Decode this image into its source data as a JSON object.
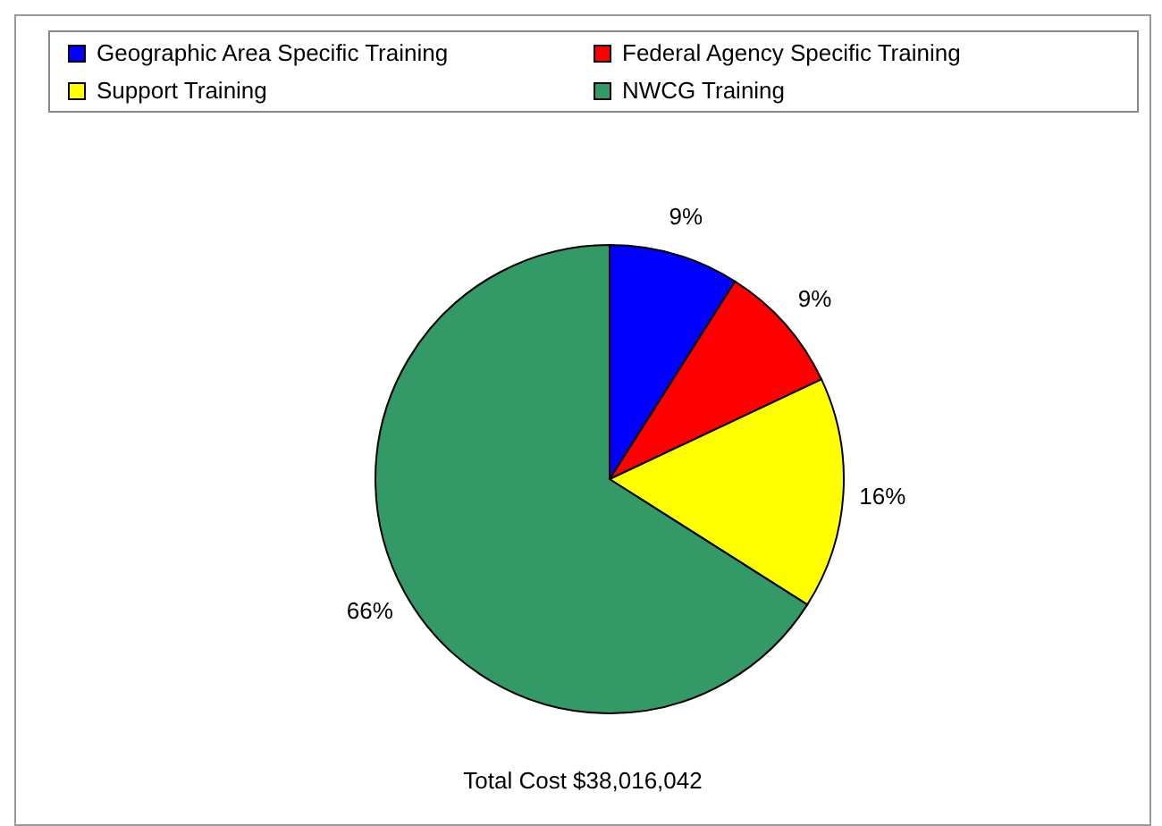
{
  "chart_data": {
    "type": "pie",
    "categories": [
      "Geographic Area Specific Training",
      "Federal Agency Specific Training",
      "Support Training",
      "NWCG Training"
    ],
    "values": [
      9,
      9,
      16,
      66
    ],
    "colors": [
      "#0000ff",
      "#ff0000",
      "#ffff00",
      "#339966"
    ],
    "value_labels": [
      "9%",
      "9%",
      "16%",
      "66%"
    ],
    "legend": "top",
    "annotations": [
      "Total Cost $38,016,042"
    ]
  }
}
